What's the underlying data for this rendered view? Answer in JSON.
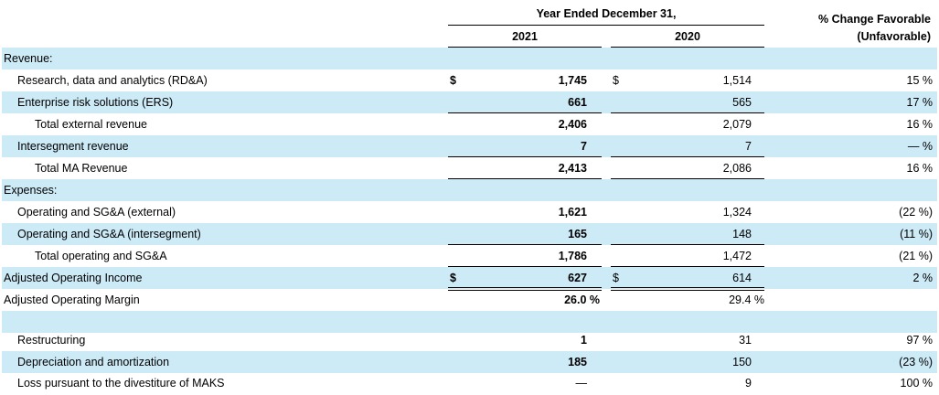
{
  "header": {
    "period": "Year Ended December 31,",
    "year1": "2021",
    "year2": "2020",
    "change_line1": "% Change Favorable",
    "change_line2": "(Unfavorable)"
  },
  "rows": [
    {
      "label": "Revenue:",
      "d1": "",
      "v1": "",
      "d2": "",
      "v2": "",
      "pct": ""
    },
    {
      "label": "Research, data and analytics (RD&A)",
      "d1": "$",
      "v1": "1,745",
      "d2": "$",
      "v2": "1,514",
      "pct": "15 %"
    },
    {
      "label": "Enterprise risk solutions (ERS)",
      "d1": "",
      "v1": "661",
      "d2": "",
      "v2": "565",
      "pct": "17 %"
    },
    {
      "label": "Total external revenue",
      "d1": "",
      "v1": "2,406",
      "d2": "",
      "v2": "2,079",
      "pct": "16 %"
    },
    {
      "label": "Intersegment revenue",
      "d1": "",
      "v1": "7",
      "d2": "",
      "v2": "7",
      "pct": "— %"
    },
    {
      "label": "Total MA Revenue",
      "d1": "",
      "v1": "2,413",
      "d2": "",
      "v2": "2,086",
      "pct": "16 %"
    },
    {
      "label": "Expenses:",
      "d1": "",
      "v1": "",
      "d2": "",
      "v2": "",
      "pct": ""
    },
    {
      "label": "Operating and SG&A (external)",
      "d1": "",
      "v1": "1,621",
      "d2": "",
      "v2": "1,324",
      "pct": "(22 %)"
    },
    {
      "label": "Operating and SG&A (intersegment)",
      "d1": "",
      "v1": "165",
      "d2": "",
      "v2": "148",
      "pct": "(11 %)"
    },
    {
      "label": "Total operating and SG&A",
      "d1": "",
      "v1": "1,786",
      "d2": "",
      "v2": "1,472",
      "pct": "(21 %)"
    },
    {
      "label": "Adjusted Operating Income",
      "d1": "$",
      "v1": "627",
      "d2": "$",
      "v2": "614",
      "pct": "2 %"
    },
    {
      "label": "Adjusted Operating Margin",
      "d1": "",
      "v1": "26.0 %",
      "d2": "",
      "v2": "29.4 %",
      "pct": ""
    },
    {
      "label": "",
      "d1": "",
      "v1": "",
      "d2": "",
      "v2": "",
      "pct": ""
    },
    {
      "label": "Restructuring",
      "d1": "",
      "v1": "1",
      "d2": "",
      "v2": "31",
      "pct": "97 %"
    },
    {
      "label": "Depreciation and amortization",
      "d1": "",
      "v1": "185",
      "d2": "",
      "v2": "150",
      "pct": "(23 %)"
    },
    {
      "label": "Loss pursuant to the divestiture of MAKS",
      "d1": "",
      "v1": "—",
      "d2": "",
      "v2": "9",
      "pct": "100 %"
    }
  ]
}
